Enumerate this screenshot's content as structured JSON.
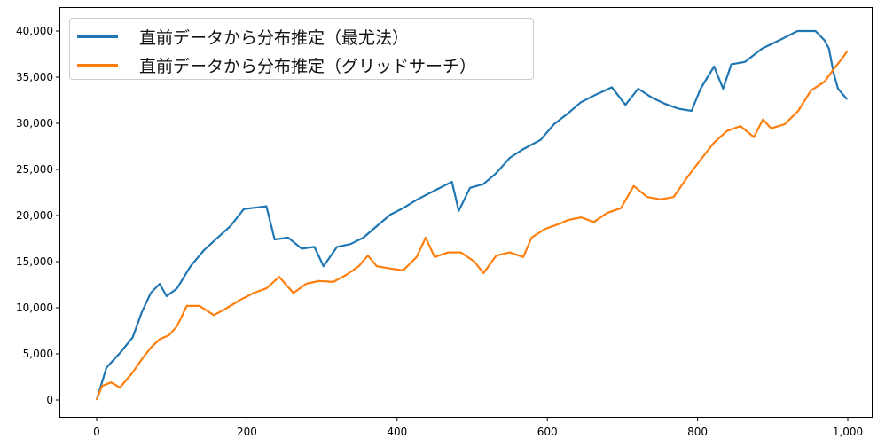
{
  "chart_data": {
    "type": "line",
    "title": "",
    "xlabel": "",
    "ylabel": "",
    "xlim": [
      -50,
      1050
    ],
    "ylim": [
      -2000,
      42000
    ],
    "x_ticks": [
      0,
      200,
      400,
      600,
      800,
      1000
    ],
    "x_tick_labels": [
      "0",
      "200",
      "400",
      "600",
      "800",
      "1,000"
    ],
    "y_ticks": [
      0,
      5000,
      10000,
      15000,
      20000,
      25000,
      30000,
      35000,
      40000
    ],
    "y_tick_labels": [
      "0",
      "5,000",
      "10,000",
      "15,000",
      "20,000",
      "25,000",
      "30,000",
      "35,000",
      "40,000"
    ],
    "grid": false,
    "legend_position": "upper left",
    "series": [
      {
        "name": "直前データから分布推定（最尤法）",
        "color": "#1f77b4",
        "x": [
          0,
          13,
          31,
          48,
          60,
          72,
          84,
          93,
          107,
          125,
          143,
          161,
          178,
          196,
          226,
          237,
          255,
          273,
          290,
          302,
          320,
          338,
          355,
          373,
          391,
          408,
          426,
          450,
          473,
          482,
          497,
          515,
          532,
          550,
          568,
          591,
          609,
          627,
          645,
          662,
          686,
          704,
          721,
          739,
          757,
          774,
          792,
          804,
          822,
          834,
          845,
          863,
          886,
          909,
          933,
          957,
          969,
          975,
          981,
          987,
          999
        ],
        "values": [
          0,
          3500,
          5100,
          6800,
          9500,
          11600,
          12600,
          11250,
          12100,
          14500,
          16250,
          17600,
          18850,
          20700,
          21000,
          17400,
          17600,
          16400,
          16600,
          14500,
          16600,
          16900,
          17600,
          18850,
          20100,
          20800,
          21700,
          22700,
          23650,
          20500,
          23000,
          23400,
          24600,
          26250,
          27200,
          28200,
          29900,
          31050,
          32300,
          33000,
          33900,
          32000,
          33750,
          32800,
          32100,
          31600,
          31350,
          33750,
          36150,
          33750,
          36400,
          36650,
          38100,
          39000,
          40000,
          40000,
          39000,
          38100,
          35500,
          33750,
          32600
        ]
      },
      {
        "name": "直前データから分布推定（グリッドサーチ）",
        "color": "#ff7f0e",
        "x": [
          0,
          7,
          19,
          31,
          48,
          60,
          72,
          84,
          96,
          107,
          120,
          137,
          156,
          172,
          191,
          209,
          226,
          243,
          262,
          279,
          296,
          315,
          332,
          349,
          361,
          373,
          391,
          408,
          426,
          438,
          450,
          468,
          485,
          503,
          515,
          532,
          550,
          568,
          579,
          597,
          616,
          627,
          645,
          662,
          680,
          698,
          715,
          733,
          751,
          768,
          786,
          804,
          822,
          839,
          857,
          875,
          887,
          898,
          916,
          934,
          951,
          969,
          981,
          993,
          999
        ],
        "values": [
          0,
          1500,
          1900,
          1350,
          3000,
          4400,
          5650,
          6600,
          7000,
          8000,
          10200,
          10200,
          9200,
          9900,
          10850,
          11600,
          12100,
          13350,
          11600,
          12600,
          12900,
          12800,
          13550,
          14500,
          15650,
          14500,
          14250,
          14050,
          15500,
          17600,
          15500,
          16000,
          16000,
          15000,
          13750,
          15650,
          16000,
          15500,
          17600,
          18550,
          19100,
          19500,
          19800,
          19300,
          20300,
          20800,
          23200,
          22000,
          21750,
          22000,
          24100,
          26050,
          27900,
          29150,
          29700,
          28500,
          30400,
          29450,
          29900,
          31350,
          33550,
          34500,
          35850,
          37100,
          37800
        ]
      }
    ]
  },
  "legend": {
    "items": [
      {
        "label": "直前データから分布推定（最尤法）",
        "color": "#1f77b4"
      },
      {
        "label": "直前データから分布推定（グリッドサーチ）",
        "color": "#ff7f0e"
      }
    ]
  },
  "axes": {
    "x_tick_labels": [
      "0",
      "200",
      "400",
      "600",
      "800",
      "1,000"
    ],
    "y_tick_labels": [
      "0",
      "5,000",
      "10,000",
      "15,000",
      "20,000",
      "25,000",
      "30,000",
      "35,000",
      "40,000"
    ]
  }
}
